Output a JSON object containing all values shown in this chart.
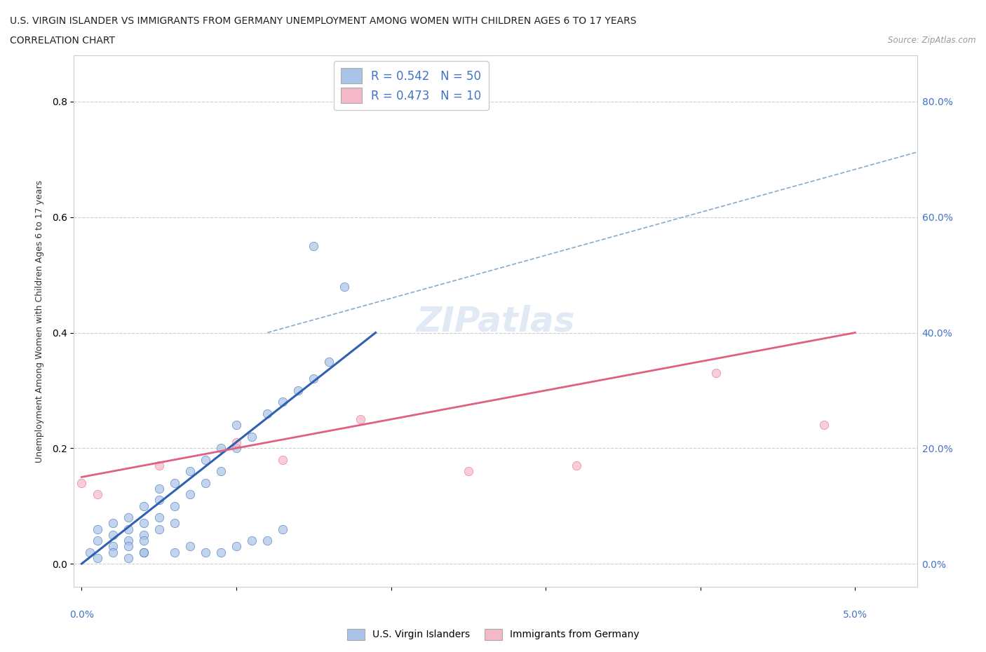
{
  "title_line1": "U.S. VIRGIN ISLANDER VS IMMIGRANTS FROM GERMANY UNEMPLOYMENT AMONG WOMEN WITH CHILDREN AGES 6 TO 17 YEARS",
  "title_line2": "CORRELATION CHART",
  "source": "Source: ZipAtlas.com",
  "ylabel": "Unemployment Among Women with Children Ages 6 to 17 years",
  "legend1_label": "U.S. Virgin Islanders",
  "legend2_label": "Immigrants from Germany",
  "r1": "0.542",
  "n1": "50",
  "r2": "0.473",
  "n2": "10",
  "watermark": "ZIPatlas",
  "blue_color": "#aac4e8",
  "pink_color": "#f5b8c8",
  "blue_line_color": "#3060b0",
  "pink_line_color": "#e06080",
  "dashed_line_color": "#88aacc",
  "ytick_labels": [
    "0.0%",
    "20.0%",
    "40.0%",
    "60.0%",
    "80.0%"
  ],
  "ytick_values": [
    0.0,
    0.2,
    0.4,
    0.6,
    0.8
  ],
  "blue_scatter_x": [
    0.0005,
    0.001,
    0.001,
    0.001,
    0.002,
    0.002,
    0.002,
    0.002,
    0.003,
    0.003,
    0.003,
    0.003,
    0.004,
    0.004,
    0.004,
    0.004,
    0.004,
    0.005,
    0.005,
    0.005,
    0.005,
    0.006,
    0.006,
    0.006,
    0.007,
    0.007,
    0.008,
    0.008,
    0.009,
    0.009,
    0.01,
    0.01,
    0.011,
    0.012,
    0.013,
    0.014,
    0.015,
    0.015,
    0.016,
    0.017,
    0.009,
    0.011,
    0.013,
    0.006,
    0.007,
    0.008,
    0.01,
    0.012,
    0.003,
    0.004
  ],
  "blue_scatter_y": [
    0.02,
    0.04,
    0.06,
    0.01,
    0.03,
    0.05,
    0.07,
    0.02,
    0.04,
    0.06,
    0.08,
    0.03,
    0.05,
    0.07,
    0.1,
    0.04,
    0.02,
    0.08,
    0.11,
    0.06,
    0.13,
    0.1,
    0.14,
    0.07,
    0.12,
    0.16,
    0.14,
    0.18,
    0.16,
    0.2,
    0.2,
    0.24,
    0.22,
    0.26,
    0.28,
    0.3,
    0.55,
    0.32,
    0.35,
    0.48,
    0.02,
    0.04,
    0.06,
    0.02,
    0.03,
    0.02,
    0.03,
    0.04,
    0.01,
    0.02
  ],
  "pink_scatter_x": [
    0.0,
    0.001,
    0.005,
    0.01,
    0.013,
    0.018,
    0.025,
    0.032,
    0.041,
    0.048
  ],
  "pink_scatter_y": [
    0.14,
    0.12,
    0.17,
    0.21,
    0.18,
    0.25,
    0.16,
    0.17,
    0.33,
    0.24
  ],
  "blue_regline_x": [
    0.0,
    0.019
  ],
  "blue_regline_y": [
    0.0,
    0.4
  ],
  "pink_regline_x": [
    0.0,
    0.05
  ],
  "pink_regline_y": [
    0.15,
    0.4
  ],
  "dashed_regline_x": [
    0.012,
    0.055
  ],
  "dashed_regline_y": [
    0.4,
    0.72
  ],
  "xmin": -0.0005,
  "xmax": 0.054,
  "ymin": -0.04,
  "ymax": 0.88
}
